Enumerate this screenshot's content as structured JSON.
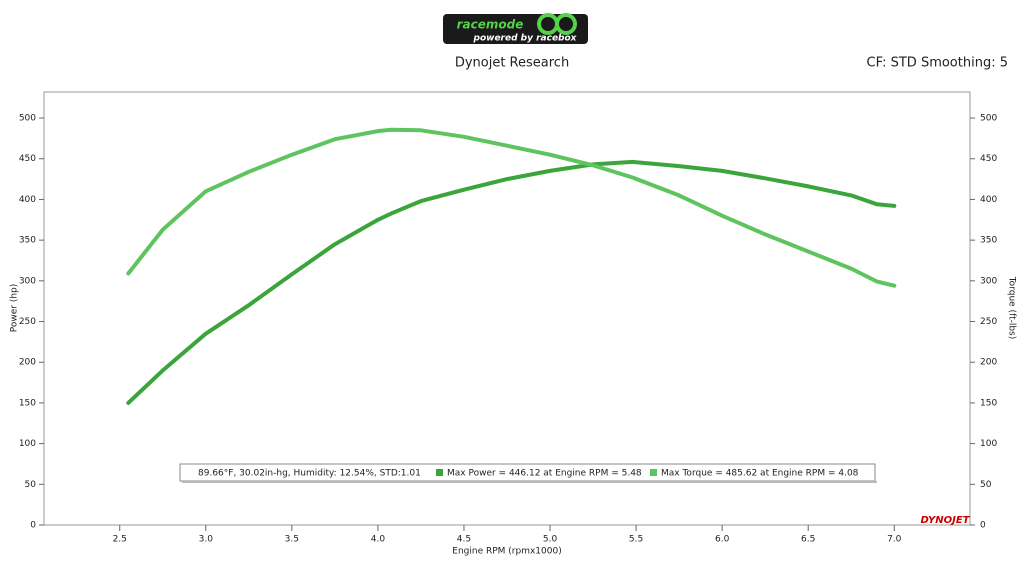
{
  "chart_data": {
    "type": "line",
    "logo": {
      "brand": "racemode",
      "tagline": "powered by racebox"
    },
    "title": "Dynojet Research",
    "subtitle": "CF: STD Smoothing: 5",
    "xlabel": "Engine RPM (rpmx1000)",
    "ylabel": "Power (hp)",
    "y2label": "Torque (ft-lbs)",
    "annotation": "89.66°F, 30.02in-hg, Humidity: 12.54%, STD:1.01",
    "watermark": "DYNOJET",
    "x": [
      2.55,
      2.75,
      3.0,
      3.25,
      3.5,
      3.75,
      4.0,
      4.08,
      4.25,
      4.5,
      4.75,
      5.0,
      5.25,
      5.48,
      5.75,
      6.0,
      6.25,
      6.5,
      6.75,
      6.9,
      7.0
    ],
    "series": [
      {
        "name": "Max Power = 446.12 at Engine RPM = 5.48",
        "color": "#3aa53a",
        "values": [
          150,
          190,
          235,
          270,
          308,
          345,
          375,
          383,
          398,
          412,
          425,
          435,
          443,
          446.12,
          441,
          435,
          426,
          416,
          405,
          394,
          392
        ]
      },
      {
        "name": "Max Torque = 485.62 at Engine RPM = 4.08",
        "color": "#5fc45f",
        "axis": "y2",
        "values": [
          309,
          363,
          410,
          434,
          455,
          474,
          484,
          485.62,
          485,
          477,
          466,
          455,
          442,
          427,
          405,
          380,
          357,
          336,
          315,
          299,
          294
        ]
      }
    ],
    "xlim": [
      2.06,
      7.44
    ],
    "xticks": [
      2.5,
      {
        "value": 3,
        "label": "3.0"
      },
      3.5,
      {
        "value": 4,
        "label": "4.0"
      },
      4.5,
      {
        "value": 5,
        "label": "5.0"
      },
      5.5,
      {
        "value": 6,
        "label": "6.0"
      },
      6.5,
      {
        "value": 7,
        "label": "7.0"
      }
    ],
    "ylim": [
      0,
      532
    ],
    "yticks": [
      0,
      50,
      100,
      150,
      200,
      250,
      300,
      350,
      400,
      450,
      500
    ],
    "y2lim": [
      0,
      532
    ],
    "y2ticks": [
      0,
      50,
      100,
      150,
      200,
      250,
      300,
      350,
      400,
      450,
      500
    ]
  }
}
